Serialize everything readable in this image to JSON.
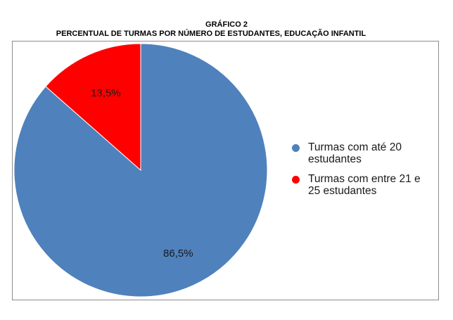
{
  "title": "GRÁFICO 2",
  "subtitle": "PERCENTUAL DE TURMAS POR NÚMERO DE ESTUDANTES, EDUCAÇÃO INFANTIL",
  "chart_data": {
    "type": "pie",
    "title": "GRÁFICO 2",
    "subtitle": "PERCENTUAL DE TURMAS POR NÚMERO DE ESTUDANTES, EDUCAÇÃO INFANTIL",
    "legend_position": "right",
    "slices": [
      {
        "label": "Turmas com até 20 estudantes",
        "legend_lines": [
          "Turmas com até 20",
          "estudantes"
        ],
        "value": 86.5,
        "value_label": "86,5%",
        "color": "#4f81bd"
      },
      {
        "label": "Turmas com entre 21 e 25 estudantes",
        "legend_lines": [
          "Turmas com entre 21 e",
          "25 estudantes"
        ],
        "value": 13.5,
        "value_label": "13,5%",
        "color": "#ff0000"
      }
    ]
  }
}
